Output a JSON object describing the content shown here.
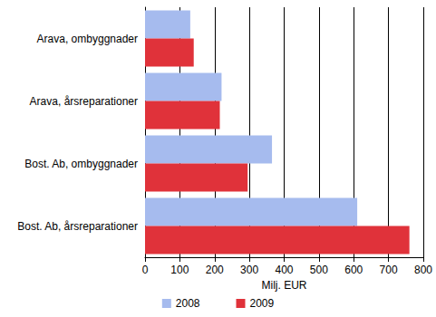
{
  "chart_data": {
    "type": "bar",
    "orientation": "horizontal",
    "categories": [
      "Arava, ombyggnader",
      "Arava, årsreparationer",
      "Bost. Ab, ombyggnader",
      "Bost. Ab, årsreparationer"
    ],
    "series": [
      {
        "name": "2008",
        "color": "#a6bbee",
        "values": [
          130,
          220,
          365,
          610
        ]
      },
      {
        "name": "2009",
        "color": "#e0323a",
        "values": [
          140,
          215,
          295,
          760
        ]
      }
    ],
    "xlabel": "Milj. EUR",
    "xlim": [
      0,
      800
    ],
    "xticks": [
      0,
      100,
      200,
      300,
      400,
      500,
      600,
      700,
      800
    ],
    "grid": true,
    "legend": "bottom"
  }
}
